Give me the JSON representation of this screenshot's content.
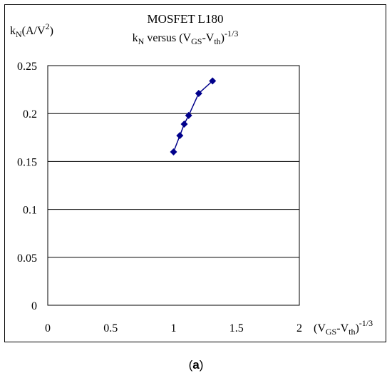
{
  "chart_data": {
    "type": "line",
    "title": "MOSFET L180",
    "subtitle": {
      "base": "k",
      "sub1": "N",
      "mid": " versus (V",
      "sub2": "GS",
      "dash": "-V",
      "sub3": "th",
      "close": ")",
      "sup": "-1/3"
    },
    "ylabel": {
      "base": "k",
      "sub": "N",
      "rest": "(A/V",
      "sup": "2",
      "close": ")"
    },
    "xlabel": {
      "open": "(V",
      "sub1": "GS",
      "dash": "-V",
      "sub2": "th",
      "close": ")",
      "sup": "-1/3"
    },
    "xlim": [
      0,
      2
    ],
    "ylim": [
      0,
      0.25
    ],
    "xticks": [
      0,
      0.5,
      1,
      1.5,
      2
    ],
    "xtick_labels": [
      "0",
      "0.5",
      "1",
      "1.5",
      "2"
    ],
    "yticks": [
      0,
      0.05,
      0.1,
      0.15,
      0.2,
      0.25
    ],
    "ytick_labels": [
      "0",
      "0.05",
      "0.1",
      "0.15",
      "0.2",
      "0.25"
    ],
    "grid": "horizontal",
    "series": [
      {
        "color": "#00008B",
        "marker": "diamond",
        "x": [
          1.0,
          1.05,
          1.085,
          1.12,
          1.2,
          1.31
        ],
        "y": [
          0.16,
          0.177,
          0.189,
          0.198,
          0.221,
          0.234
        ]
      }
    ]
  },
  "caption": {
    "open": "(",
    "letter": "a",
    "close": ")"
  }
}
